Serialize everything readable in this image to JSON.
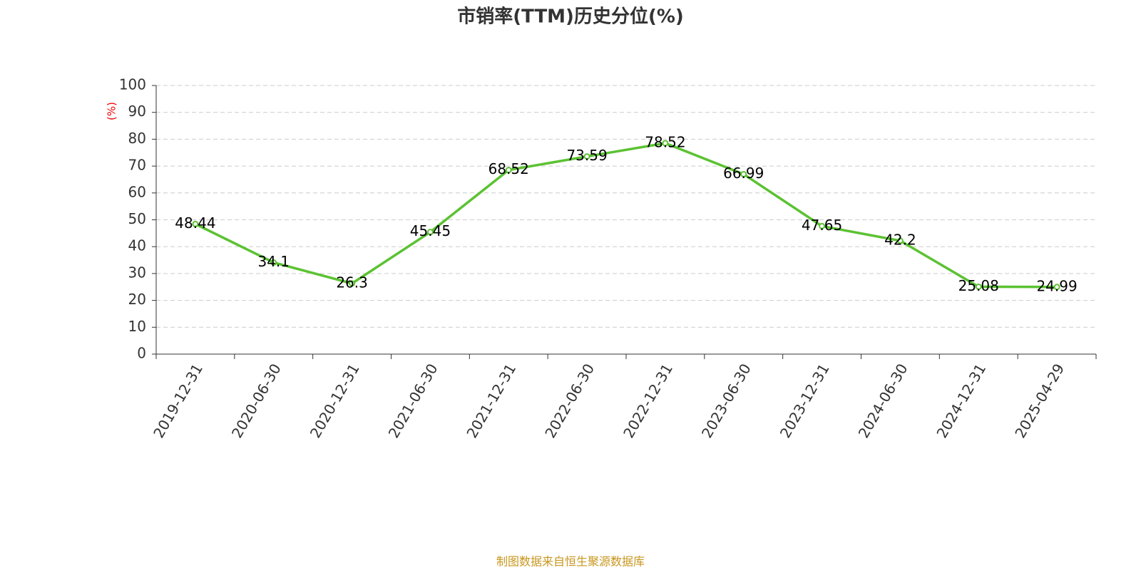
{
  "chart_data": {
    "type": "line",
    "title": "市销率(TTM)历史分位(%)",
    "y_label": "(%)",
    "categories": [
      "2019-12-31",
      "2020-06-30",
      "2020-12-31",
      "2021-06-30",
      "2021-12-31",
      "2022-06-30",
      "2022-12-31",
      "2023-06-30",
      "2023-12-31",
      "2024-06-30",
      "2024-12-31",
      "2025-04-29"
    ],
    "values": [
      48.44,
      34.1,
      26.3,
      45.45,
      68.52,
      73.59,
      78.52,
      66.99,
      47.65,
      42.2,
      25.08,
      24.99
    ],
    "color": "#5bc232",
    "ylim": [
      0,
      100
    ],
    "yticks": [
      0,
      10,
      20,
      30,
      40,
      50,
      60,
      70,
      80,
      90,
      100
    ],
    "grid": true,
    "source": "制图数据来自恒生聚源数据库"
  }
}
